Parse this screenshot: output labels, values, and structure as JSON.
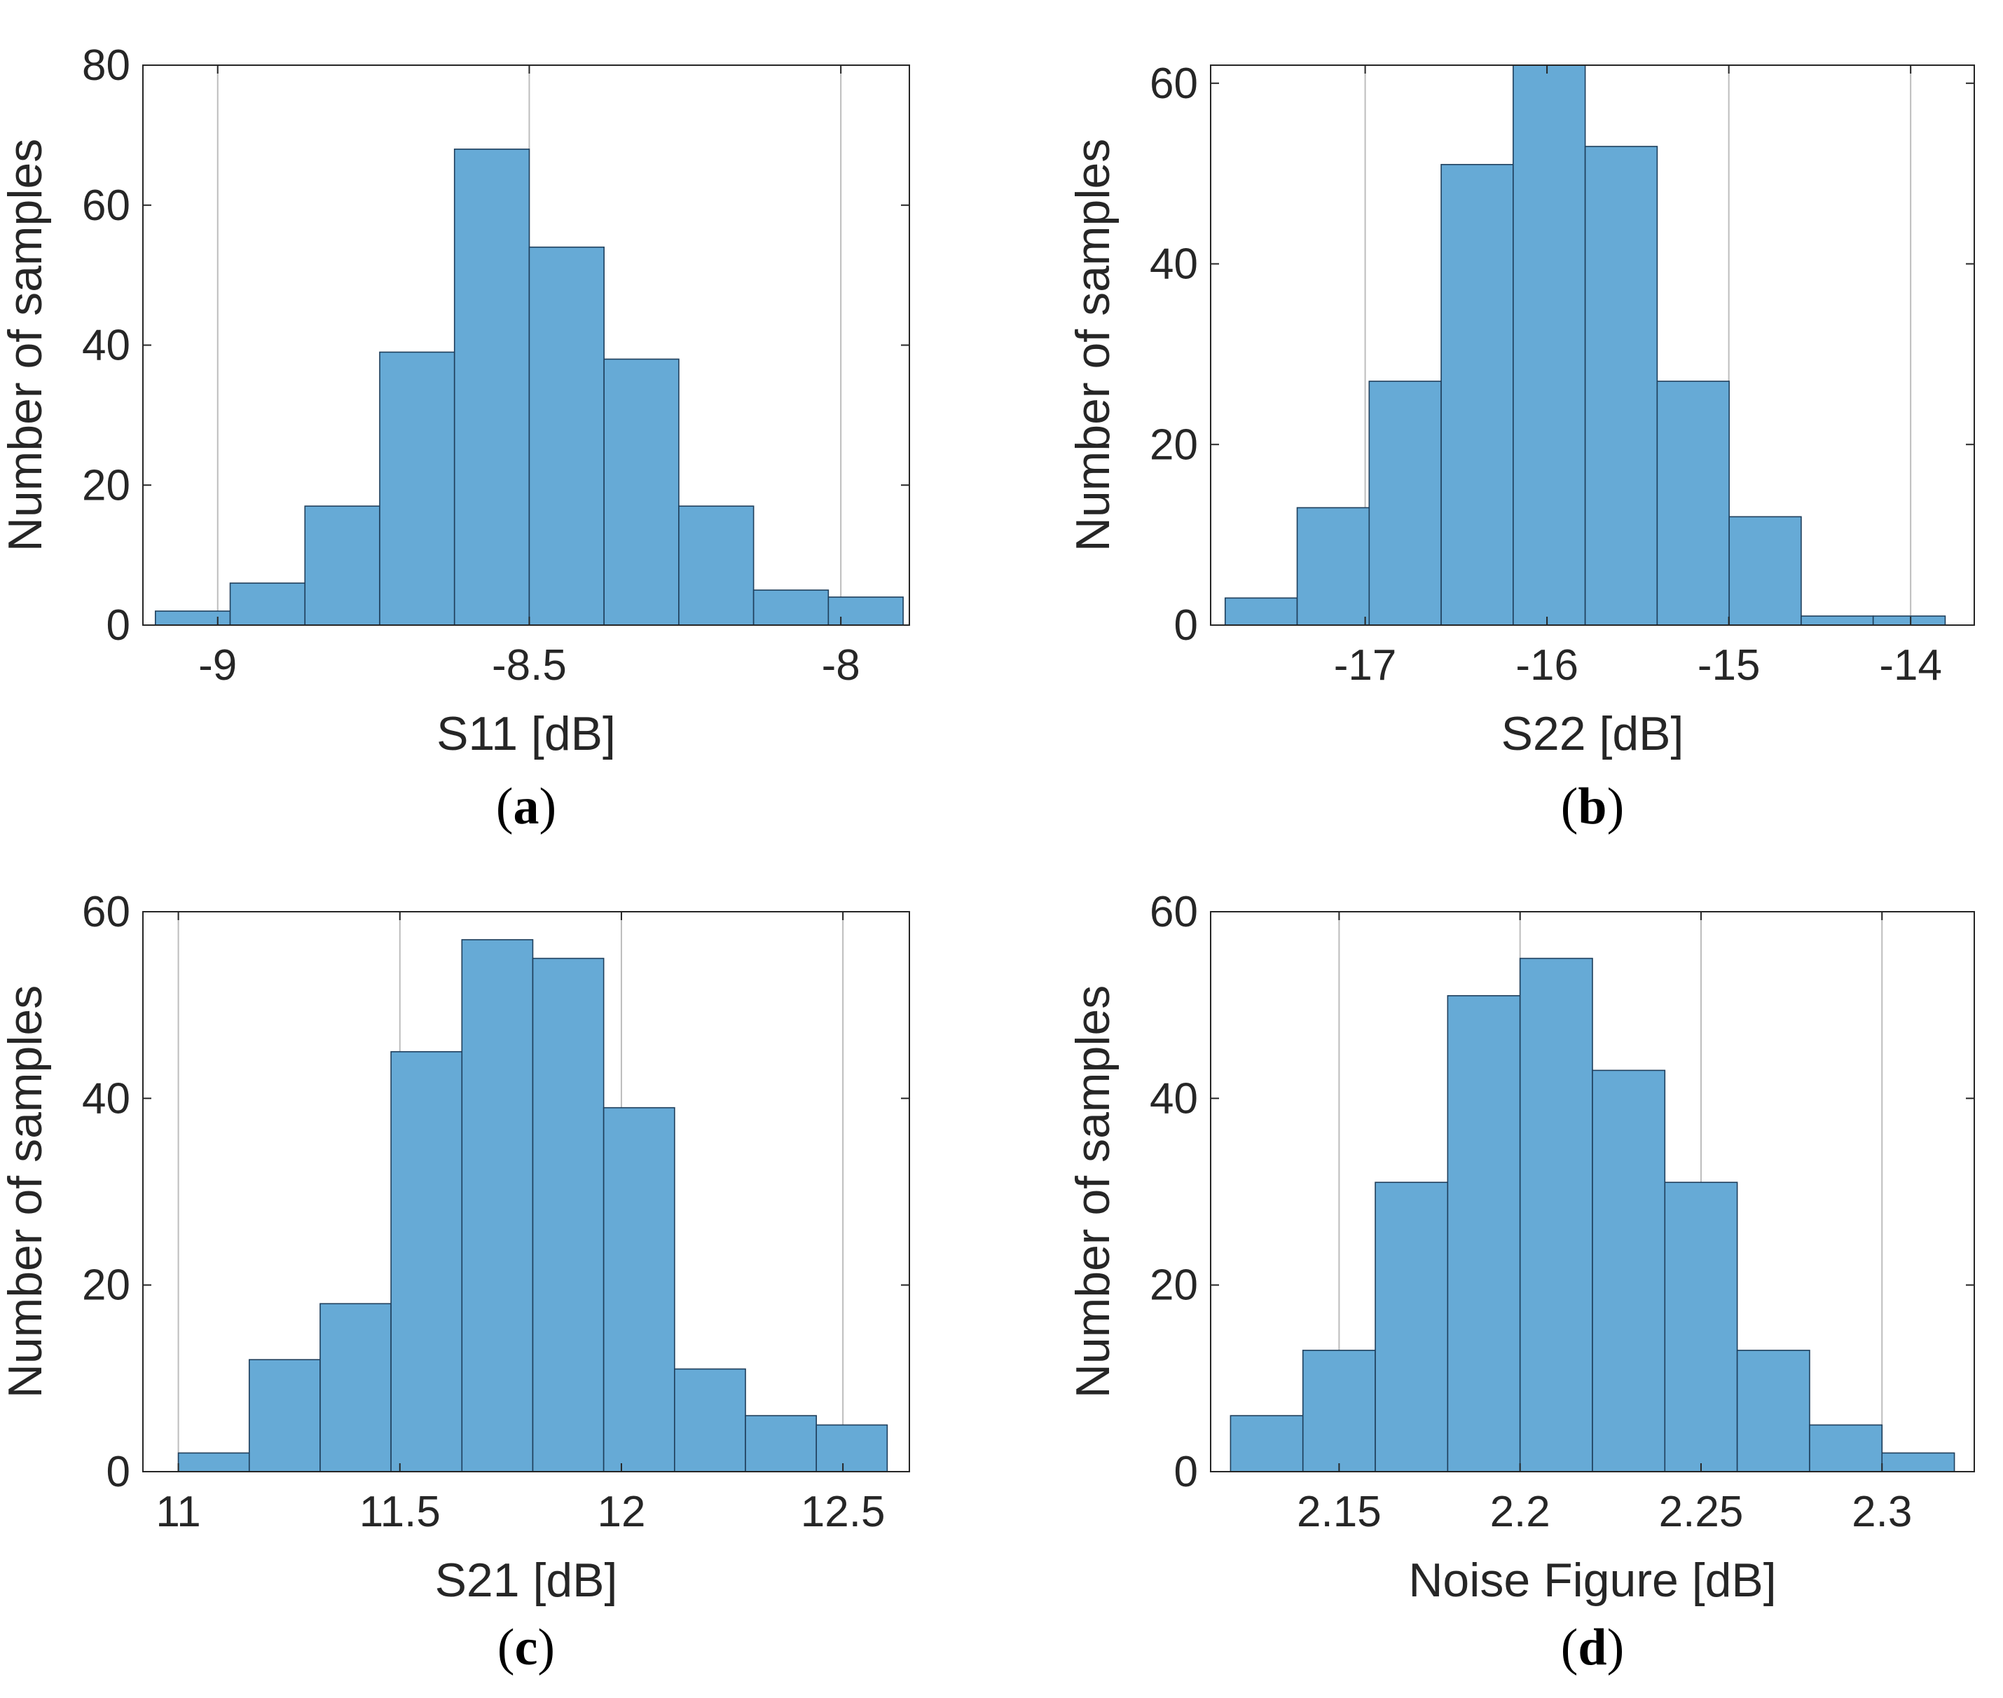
{
  "colors": {
    "bar_fill": "#66aad6",
    "bar_edge": "#1f3f5c",
    "axis": "#262626",
    "grid": "#bdbdbd"
  },
  "chart_data": [
    {
      "type": "bar",
      "panel_label": "a",
      "xlabel": "S11 [dB]",
      "ylabel": "Number of samples",
      "xlim": [
        -9.12,
        -7.89
      ],
      "ylim": [
        0,
        80
      ],
      "xticks": [
        -9,
        -8.5,
        -8
      ],
      "xtick_labels": [
        "-9",
        "-8.5",
        "-8"
      ],
      "yticks": [
        0,
        20,
        40,
        60,
        80
      ],
      "ytick_labels": [
        "0",
        "20",
        "40",
        "60",
        "80"
      ],
      "grid": true,
      "bin_start": -9.1,
      "bin_width": 0.12,
      "values": [
        2,
        6,
        17,
        39,
        68,
        54,
        38,
        17,
        5,
        4
      ]
    },
    {
      "type": "bar",
      "panel_label": "b",
      "xlabel": "S22 [dB]",
      "ylabel": "Number of samples",
      "xlim": [
        -17.85,
        -13.65
      ],
      "ylim": [
        0,
        62
      ],
      "xticks": [
        -17,
        -16,
        -15,
        -14
      ],
      "xtick_labels": [
        "-17",
        "-16",
        "-15",
        "-14"
      ],
      "yticks": [
        0,
        20,
        40,
        60
      ],
      "ytick_labels": [
        "0",
        "20",
        "40",
        "60"
      ],
      "grid": true,
      "bin_start": -17.77,
      "bin_width": 0.396,
      "values": [
        3,
        13,
        27,
        51,
        62,
        53,
        27,
        12,
        1,
        1
      ]
    },
    {
      "type": "bar",
      "panel_label": "c",
      "xlabel": "S21 [dB]",
      "ylabel": "Number of samples",
      "xlim": [
        10.92,
        12.65
      ],
      "ylim": [
        0,
        60
      ],
      "xticks": [
        11,
        11.5,
        12,
        12.5
      ],
      "xtick_labels": [
        "11",
        "11.5",
        "12",
        "12.5"
      ],
      "yticks": [
        0,
        20,
        40,
        60
      ],
      "ytick_labels": [
        "0",
        "20",
        "40",
        "60"
      ],
      "grid": true,
      "bin_start": 11.0,
      "bin_width": 0.16,
      "values": [
        2,
        12,
        18,
        45,
        57,
        55,
        39,
        11,
        6,
        5
      ]
    },
    {
      "type": "bar",
      "panel_label": "d",
      "xlabel": "Noise Figure [dB]",
      "ylabel": "Number of samples",
      "xlim": [
        2.1145,
        2.3255
      ],
      "ylim": [
        0,
        60
      ],
      "xticks": [
        2.15,
        2.2,
        2.25,
        2.3
      ],
      "xtick_labels": [
        "2.15",
        "2.2",
        "2.25",
        "2.3"
      ],
      "yticks": [
        0,
        20,
        40,
        60
      ],
      "ytick_labels": [
        "0",
        "20",
        "40",
        "60"
      ],
      "grid": true,
      "bin_start": 2.12,
      "bin_width": 0.02,
      "values": [
        6,
        13,
        31,
        51,
        55,
        43,
        31,
        13,
        5,
        2
      ]
    }
  ]
}
